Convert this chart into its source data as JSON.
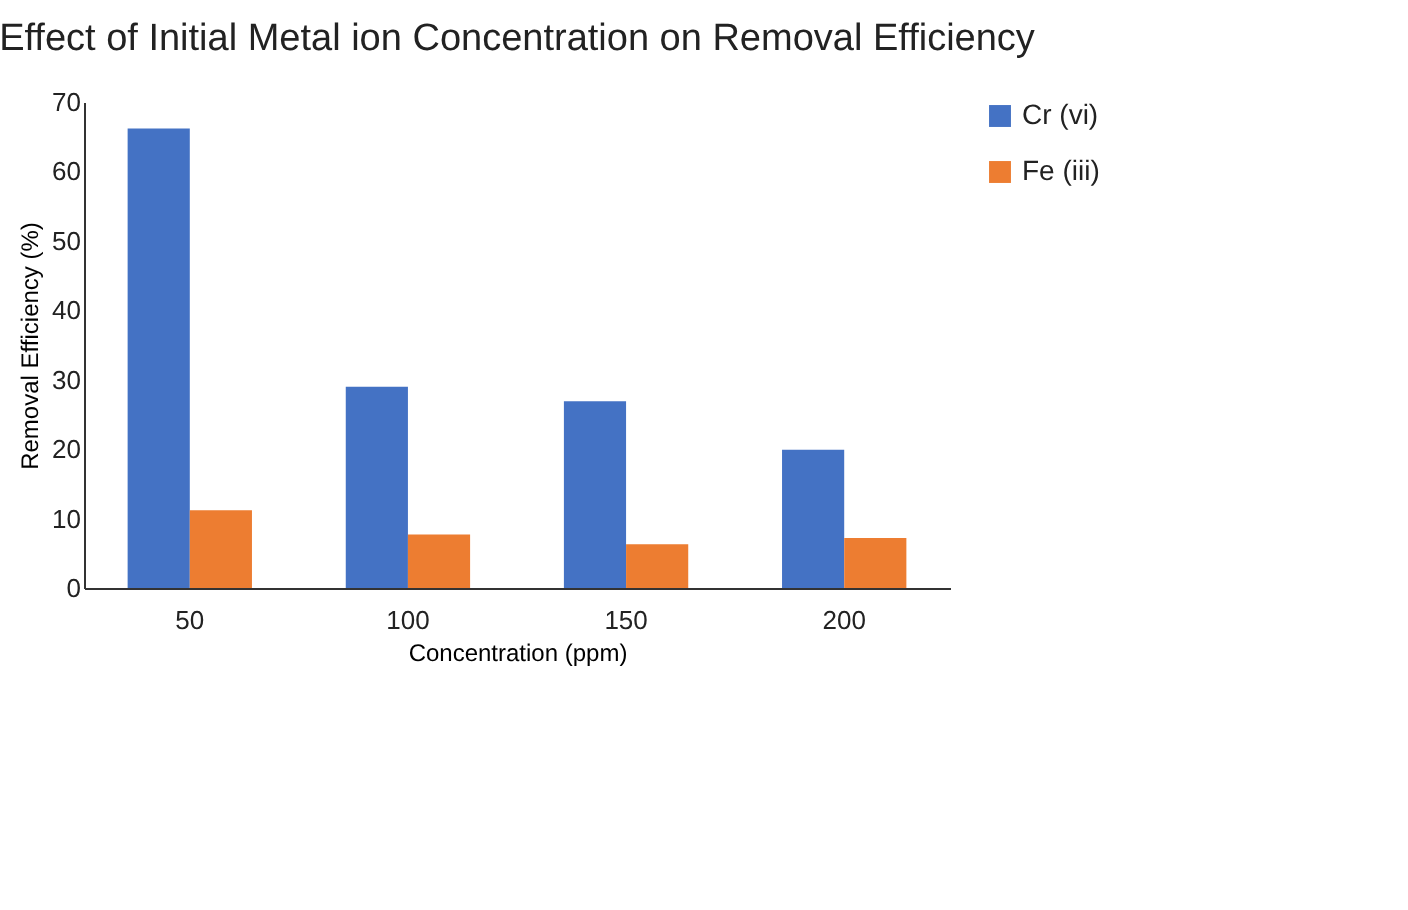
{
  "chart_data": {
    "type": "bar",
    "title": "Effect of Initial Metal ion Concentration on Removal Efficiency",
    "xlabel": "Concentration (ppm)",
    "ylabel": "Removal Efficiency (%)",
    "categories": [
      "50",
      "100",
      "150",
      "200"
    ],
    "series": [
      {
        "name": "Cr (vi)",
        "color": "#4472c4",
        "values": [
          66.2,
          29,
          26.9,
          19.9
        ]
      },
      {
        "name": "Fe (iii)",
        "color": "#ed7d31",
        "values": [
          11.2,
          7.7,
          6.3,
          7.2
        ]
      }
    ],
    "ylim": [
      0,
      70
    ],
    "yticks": [
      0,
      10,
      20,
      30,
      40,
      50,
      60,
      70
    ],
    "grid": false,
    "legend": "right"
  }
}
